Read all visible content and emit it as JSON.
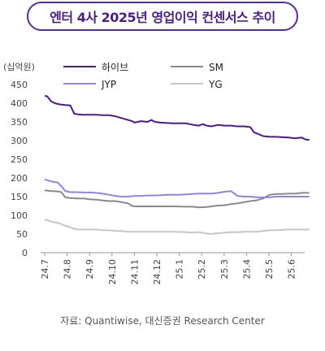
{
  "title": "엔터 4사 2025년 영업이익 컨센서스 추이",
  "unit": "(십억원)",
  "source": "자료: Quantiwise, 대신증권 Research Center",
  "colors": {
    "title_border": "#5b2d9a",
    "title_text": "#4a1f86"
  },
  "chart_data": {
    "type": "line",
    "x": [
      "24.7",
      "24.8",
      "24.9",
      "24.10",
      "24.11",
      "24.12",
      "25.1",
      "25.2",
      "25.3",
      "25.4",
      "25.5",
      "25.6"
    ],
    "ylim": [
      0,
      450
    ],
    "yticks": [
      0,
      50,
      100,
      150,
      200,
      250,
      300,
      350,
      400,
      450
    ],
    "ylabel": "(십억원)",
    "legend_position": "top",
    "series": [
      {
        "name": "하이브",
        "color": "#4b1a8f",
        "values": [
          [
            24.7,
            420
          ],
          [
            24.72,
            418
          ],
          [
            24.75,
            405
          ],
          [
            24.78,
            400
          ],
          [
            24.8,
            398
          ],
          [
            24.83,
            396
          ],
          [
            24.86,
            395
          ],
          [
            24.9,
            394
          ],
          [
            24.93,
            372
          ],
          [
            24.96,
            370
          ],
          [
            25.0,
            369
          ],
          [
            25.05,
            369
          ],
          [
            25.1,
            369
          ],
          [
            25.15,
            368
          ],
          [
            25.2,
            368
          ],
          [
            25.25,
            365
          ],
          [
            25.3,
            360
          ],
          [
            25.35,
            355
          ],
          [
            25.38,
            352
          ],
          [
            25.4,
            348
          ],
          [
            25.45,
            352
          ],
          [
            25.5,
            350
          ],
          [
            25.53,
            355
          ],
          [
            25.56,
            350
          ],
          [
            25.6,
            348
          ],
          [
            25.65,
            347
          ],
          [
            25.7,
            346
          ],
          [
            25.75,
            346
          ],
          [
            25.8,
            346
          ],
          [
            25.83,
            344
          ],
          [
            25.86,
            342
          ],
          [
            25.9,
            340
          ],
          [
            25.93,
            344
          ],
          [
            25.96,
            340
          ],
          [
            26.0,
            338
          ],
          [
            26.05,
            342
          ],
          [
            26.1,
            340
          ],
          [
            26.15,
            340
          ],
          [
            26.2,
            338
          ],
          [
            26.25,
            338
          ],
          [
            26.3,
            336
          ],
          [
            26.33,
            322
          ],
          [
            26.36,
            318
          ],
          [
            26.4,
            312
          ],
          [
            26.45,
            310
          ],
          [
            26.5,
            310
          ],
          [
            26.55,
            309
          ],
          [
            26.6,
            308
          ],
          [
            26.65,
            306
          ],
          [
            26.7,
            308
          ],
          [
            26.73,
            303
          ],
          [
            26.76,
            302
          ]
        ]
      },
      {
        "name": "SM",
        "color": "#8a8a8a",
        "values": [
          [
            24.7,
            167
          ],
          [
            24.75,
            165
          ],
          [
            24.8,
            164
          ],
          [
            24.83,
            162
          ],
          [
            24.86,
            148
          ],
          [
            24.9,
            146
          ],
          [
            24.95,
            145
          ],
          [
            25.0,
            145
          ],
          [
            25.05,
            143
          ],
          [
            25.1,
            142
          ],
          [
            25.15,
            140
          ],
          [
            25.2,
            138
          ],
          [
            25.25,
            138
          ],
          [
            25.3,
            135
          ],
          [
            25.35,
            132
          ],
          [
            25.38,
            125
          ],
          [
            25.4,
            124
          ],
          [
            25.5,
            124
          ],
          [
            25.6,
            124
          ],
          [
            25.7,
            124
          ],
          [
            25.8,
            123
          ],
          [
            25.85,
            123
          ],
          [
            25.9,
            121
          ],
          [
            25.95,
            122
          ],
          [
            26.0,
            124
          ],
          [
            26.05,
            126
          ],
          [
            26.1,
            127
          ],
          [
            26.15,
            130
          ],
          [
            26.2,
            132
          ],
          [
            26.25,
            135
          ],
          [
            26.3,
            138
          ],
          [
            26.35,
            140
          ],
          [
            26.4,
            145
          ],
          [
            26.45,
            155
          ],
          [
            26.5,
            157
          ],
          [
            26.55,
            157
          ],
          [
            26.6,
            158
          ],
          [
            26.65,
            158
          ],
          [
            26.7,
            160
          ],
          [
            26.76,
            160
          ]
        ]
      },
      {
        "name": "JYP",
        "color": "#8f83f0",
        "values": [
          [
            24.7,
            196
          ],
          [
            24.73,
            193
          ],
          [
            24.76,
            190
          ],
          [
            24.8,
            188
          ],
          [
            24.83,
            178
          ],
          [
            24.86,
            165
          ],
          [
            24.9,
            162
          ],
          [
            24.95,
            162
          ],
          [
            25.0,
            161
          ],
          [
            25.05,
            161
          ],
          [
            25.1,
            160
          ],
          [
            25.15,
            158
          ],
          [
            25.2,
            155
          ],
          [
            25.25,
            152
          ],
          [
            25.3,
            150
          ],
          [
            25.35,
            150
          ],
          [
            25.4,
            152
          ],
          [
            25.45,
            152
          ],
          [
            25.5,
            153
          ],
          [
            25.55,
            153
          ],
          [
            25.6,
            154
          ],
          [
            25.65,
            155
          ],
          [
            25.7,
            155
          ],
          [
            25.75,
            155
          ],
          [
            25.8,
            156
          ],
          [
            25.85,
            157
          ],
          [
            25.9,
            158
          ],
          [
            25.95,
            158
          ],
          [
            26.0,
            158
          ],
          [
            26.05,
            160
          ],
          [
            26.1,
            163
          ],
          [
            26.15,
            165
          ],
          [
            26.2,
            152
          ],
          [
            26.25,
            150
          ],
          [
            26.3,
            150
          ],
          [
            26.35,
            148
          ],
          [
            26.4,
            148
          ],
          [
            26.45,
            148
          ],
          [
            26.5,
            150
          ],
          [
            26.55,
            150
          ],
          [
            26.6,
            150
          ],
          [
            26.65,
            150
          ],
          [
            26.7,
            150
          ],
          [
            26.76,
            150
          ]
        ]
      },
      {
        "name": "YG",
        "color": "#c6c6c6",
        "values": [
          [
            24.7,
            88
          ],
          [
            24.73,
            86
          ],
          [
            24.76,
            82
          ],
          [
            24.8,
            80
          ],
          [
            24.83,
            76
          ],
          [
            24.86,
            72
          ],
          [
            24.9,
            68
          ],
          [
            24.93,
            64
          ],
          [
            24.96,
            62
          ],
          [
            25.0,
            62
          ],
          [
            25.05,
            62
          ],
          [
            25.1,
            62
          ],
          [
            25.15,
            60
          ],
          [
            25.2,
            60
          ],
          [
            25.25,
            58
          ],
          [
            25.3,
            58
          ],
          [
            25.35,
            56
          ],
          [
            25.4,
            56
          ],
          [
            25.5,
            56
          ],
          [
            25.6,
            56
          ],
          [
            25.7,
            56
          ],
          [
            25.8,
            55
          ],
          [
            25.85,
            54
          ],
          [
            25.9,
            55
          ],
          [
            25.95,
            52
          ],
          [
            26.0,
            50
          ],
          [
            26.03,
            52
          ],
          [
            26.06,
            52
          ],
          [
            26.1,
            54
          ],
          [
            26.15,
            55
          ],
          [
            26.2,
            55
          ],
          [
            26.25,
            56
          ],
          [
            26.3,
            56
          ],
          [
            26.35,
            56
          ],
          [
            26.4,
            58
          ],
          [
            26.45,
            60
          ],
          [
            26.5,
            60
          ],
          [
            26.55,
            61
          ],
          [
            26.6,
            62
          ],
          [
            26.65,
            62
          ],
          [
            26.7,
            62
          ],
          [
            26.76,
            62
          ]
        ]
      }
    ]
  }
}
